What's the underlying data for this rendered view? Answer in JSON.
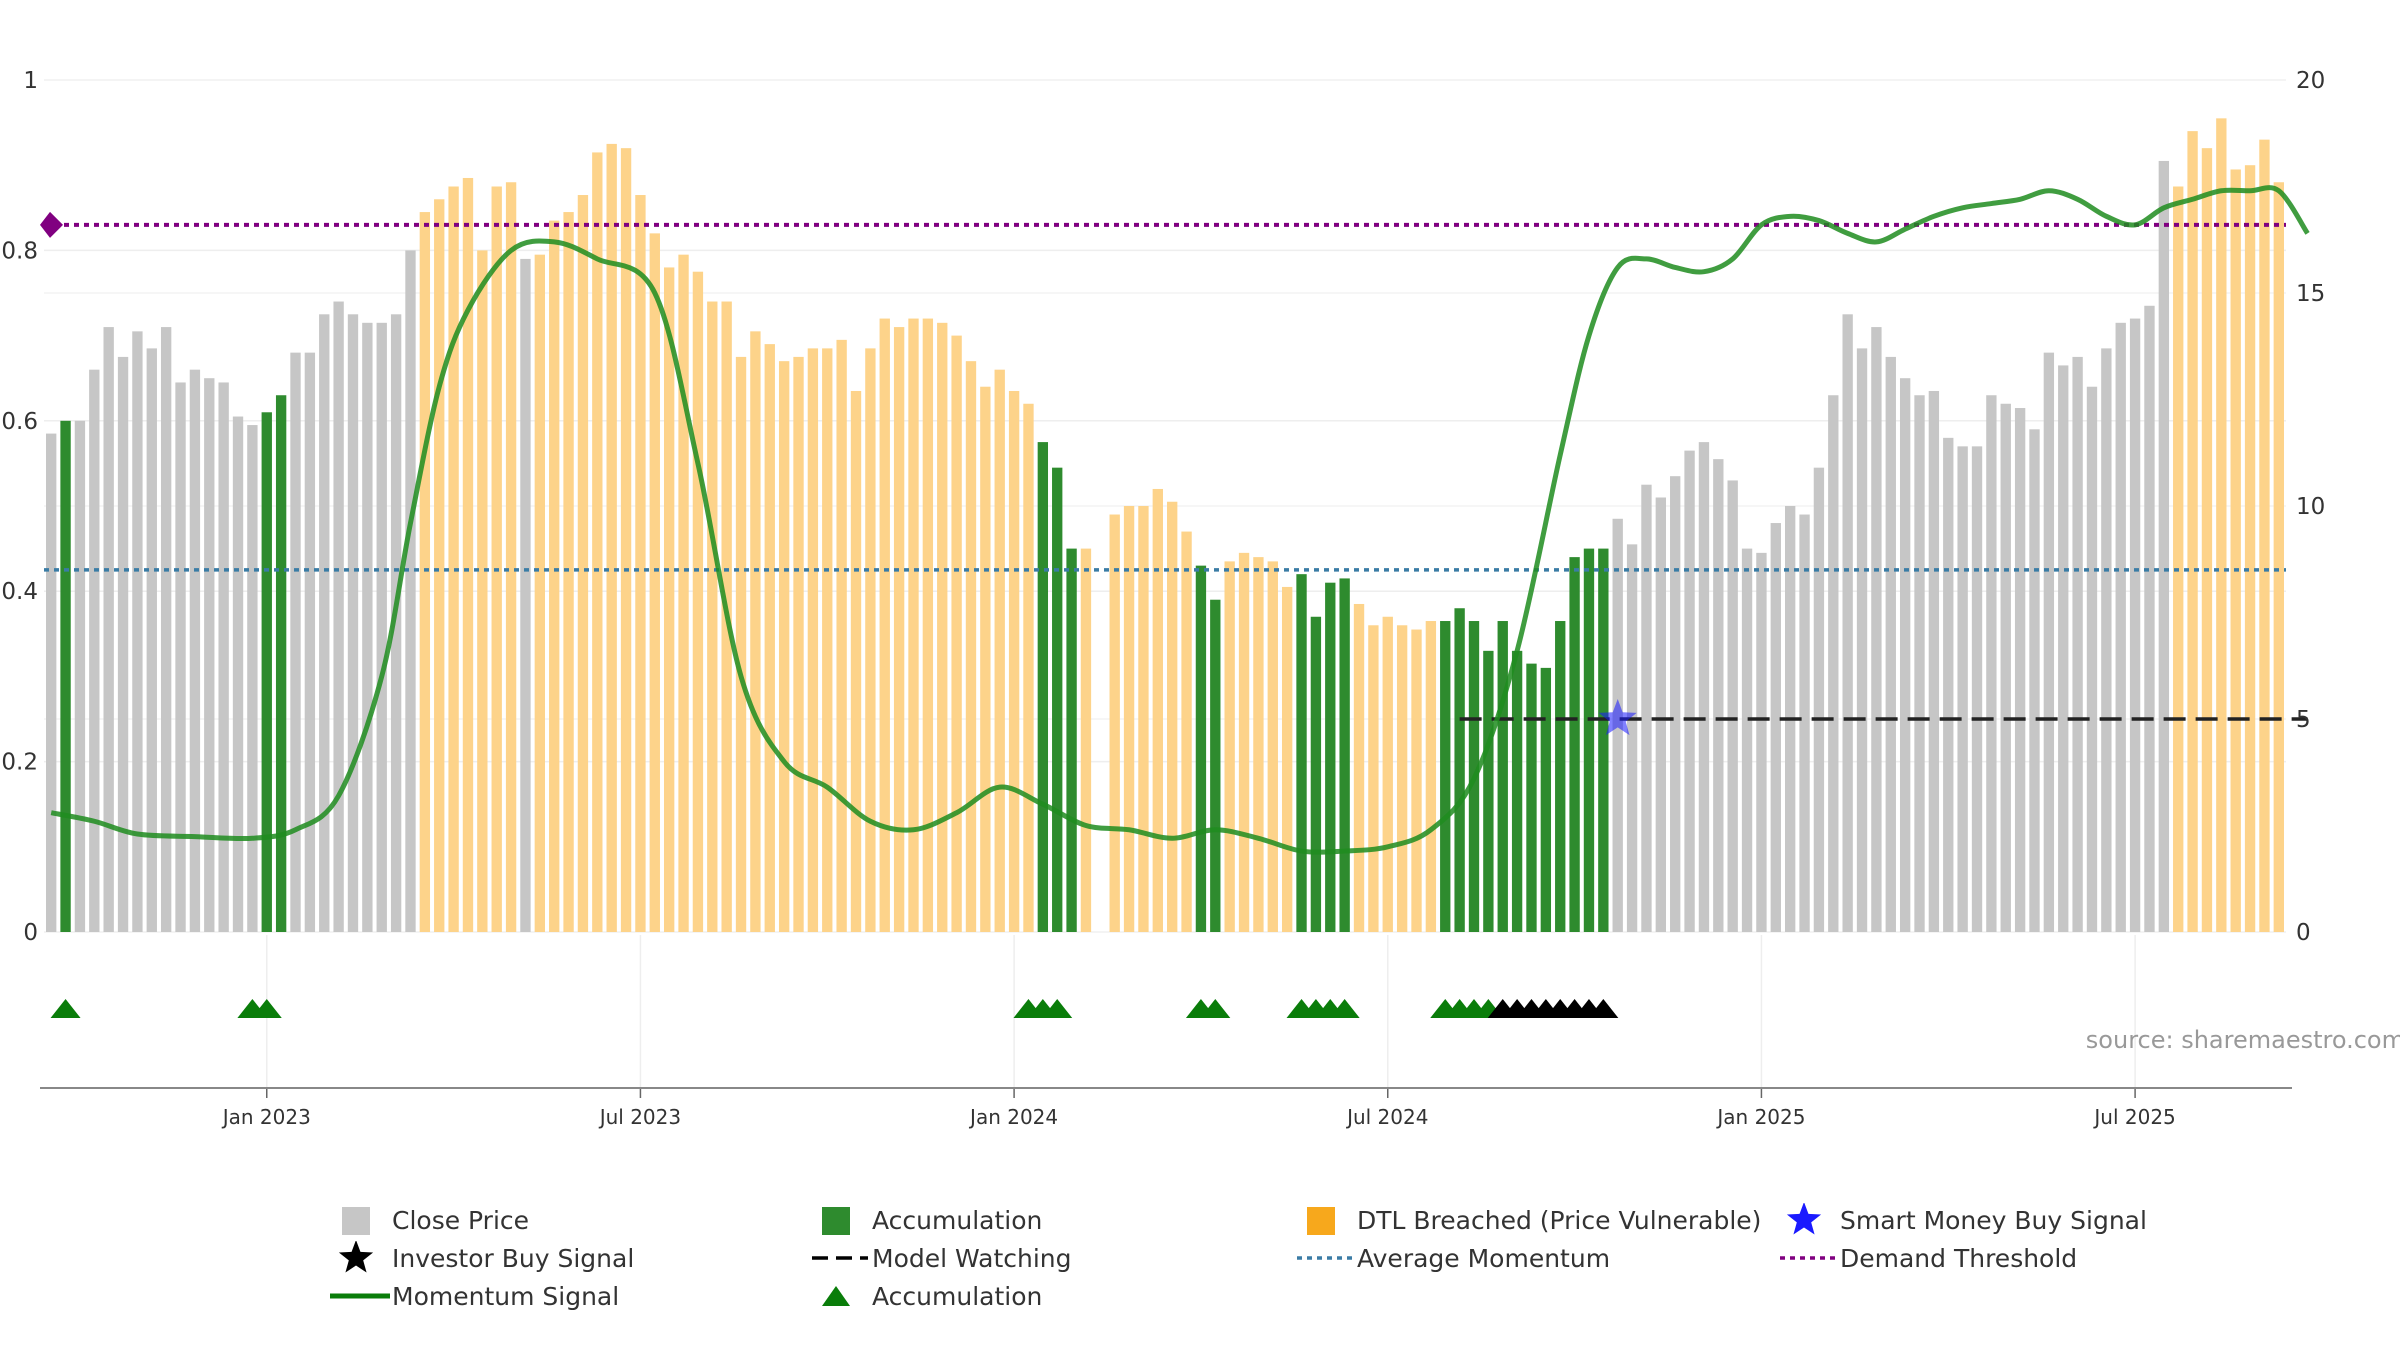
{
  "source_label": "source: sharemaestro.com",
  "colors": {
    "close_price": "#c6c6c6",
    "accumulation": "#2e8b2e",
    "dtl_breached": "#fdd38a",
    "momentum": "#1e8c1e",
    "average_momentum": "#3a7ca5",
    "demand_threshold": "#800080",
    "model_watching": "#222222",
    "smart_money": "#1a1aff",
    "investor_buy": "#000000",
    "marker_accumulation": "#0a7d0a"
  },
  "legend": [
    {
      "symbol": "square-gray",
      "label": "Close Price"
    },
    {
      "symbol": "square-green",
      "label": "Accumulation"
    },
    {
      "symbol": "square-orange",
      "label": "DTL Breached (Price Vulnerable)"
    },
    {
      "symbol": "star-blue",
      "label": "Smart Money Buy Signal"
    },
    {
      "symbol": "star-black",
      "label": "Investor Buy Signal"
    },
    {
      "symbol": "dash-black",
      "label": "Model Watching"
    },
    {
      "symbol": "dot-blue",
      "label": "Average Momentum"
    },
    {
      "symbol": "dot-purple",
      "label": "Demand Threshold"
    },
    {
      "symbol": "line-green",
      "label": "Momentum Signal"
    },
    {
      "symbol": "triangle-green",
      "label": "Accumulation"
    }
  ],
  "chart_data": {
    "type": "bar",
    "x_tick_labels": [
      "Jan 2023",
      "Jul 2023",
      "Jan 2024",
      "Jul 2024",
      "Jan 2025",
      "Jul 2025"
    ],
    "y_left": {
      "min": 0,
      "max": 1,
      "ticks": [
        "0",
        "0.2",
        "0.4",
        "0.6",
        "0.8",
        "1"
      ]
    },
    "y_right": {
      "min": 0,
      "max": 20,
      "ticks": [
        "0",
        "5",
        "10",
        "15",
        "20"
      ]
    },
    "grid": true,
    "legend_position": "bottom",
    "close_price_series": {
      "name": "Close Price",
      "axis": "right",
      "values": [
        11.7,
        12,
        12,
        13.2,
        14.2,
        13.5,
        14.1,
        13.7,
        14.2,
        12.9,
        13.2,
        13,
        12.9,
        12.1,
        11.9,
        12.2,
        12.6,
        13.6,
        13.6,
        14.5,
        14.8,
        14.5,
        14.3,
        14.3,
        14.5,
        16,
        16.9,
        17.2,
        17.5,
        17.7,
        16,
        17.5,
        17.6,
        15.8,
        15.9,
        16.7,
        16.9,
        17.3,
        18.3,
        18.5,
        18.4,
        17.3,
        16.4,
        15.6,
        15.9,
        15.5,
        14.8,
        14.8,
        13.5,
        14.1,
        13.8,
        13.4,
        13.5,
        13.7,
        13.7,
        13.9,
        12.7,
        13.7,
        14.4,
        14.2,
        14.4,
        14.4,
        14.3,
        14,
        13.4,
        12.8,
        13.2,
        12.7,
        12.4,
        11.5,
        10.9,
        9,
        9,
        0,
        9.8,
        10,
        10,
        10.4,
        10.1,
        9.4,
        8.6,
        7.8,
        8.7,
        8.9,
        8.8,
        8.7,
        8.1,
        8.4,
        7.4,
        8.2,
        8.3,
        7.7,
        7.2,
        7.4,
        7.2,
        7.1,
        7.3,
        7.3,
        7.6,
        7.3,
        6.6,
        7.3,
        6.6,
        6.3,
        6.2,
        7.3,
        8.8,
        9,
        9,
        9.7,
        9.1,
        10.5,
        10.2,
        10.7,
        11.3,
        11.5,
        11.1,
        10.6,
        9,
        8.9,
        9.6,
        10,
        9.8,
        10.9,
        12.6,
        14.5,
        13.7,
        14.2,
        13.5,
        13,
        12.6,
        12.7,
        11.6,
        11.4,
        11.4,
        12.6,
        12.4,
        12.3,
        11.8,
        13.6,
        13.3,
        13.5,
        12.8,
        13.7,
        14.3,
        14.4,
        14.7,
        18.1,
        17.5,
        18.8,
        18.4,
        19.1,
        17.9,
        18,
        18.6,
        17.6
      ],
      "accumulation_bars": [
        1,
        15,
        16,
        69,
        70,
        71,
        80,
        81,
        87,
        88,
        89,
        90,
        97,
        98,
        99,
        100,
        101,
        102,
        103,
        104,
        105,
        106,
        107,
        108
      ],
      "dtl_breached_bars": [
        26,
        27,
        28,
        29,
        30,
        31,
        32,
        34,
        35,
        36,
        37,
        38,
        39,
        40,
        41,
        42,
        43,
        44,
        45,
        46,
        47,
        48,
        49,
        50,
        51,
        52,
        53,
        54,
        55,
        56,
        57,
        58,
        59,
        60,
        61,
        62,
        63,
        64,
        65,
        66,
        67,
        68,
        69,
        70,
        71,
        72,
        73,
        74,
        75,
        76,
        77,
        78,
        79,
        80,
        81,
        82,
        83,
        84,
        85,
        86,
        87,
        88,
        89,
        90,
        91,
        92,
        93,
        94,
        95,
        96,
        97,
        98,
        99,
        100,
        101,
        102,
        103,
        104,
        105,
        106,
        107,
        108,
        148,
        149,
        150,
        151,
        152,
        153,
        154,
        155,
        156,
        157
      ]
    },
    "momentum_signal": {
      "name": "Momentum Signal",
      "axis": "left",
      "x_index": [
        0,
        3,
        6,
        10,
        14,
        17,
        20,
        23,
        25,
        27,
        29,
        32,
        35,
        38,
        42,
        45,
        48,
        51,
        54,
        57,
        60,
        63,
        66,
        69,
        72,
        75,
        78,
        81,
        84,
        87,
        90,
        93,
        96,
        99,
        102,
        105,
        107,
        109,
        111,
        113,
        115,
        117,
        119,
        121,
        123,
        125,
        127,
        129,
        131,
        133,
        135,
        137,
        139,
        141,
        143,
        145,
        147,
        149,
        151,
        153,
        155,
        157
      ],
      "values": [
        0.14,
        0.13,
        0.115,
        0.112,
        0.11,
        0.12,
        0.16,
        0.3,
        0.48,
        0.64,
        0.73,
        0.8,
        0.81,
        0.79,
        0.75,
        0.55,
        0.3,
        0.2,
        0.17,
        0.13,
        0.12,
        0.14,
        0.17,
        0.15,
        0.125,
        0.12,
        0.11,
        0.12,
        0.11,
        0.095,
        0.095,
        0.1,
        0.12,
        0.18,
        0.33,
        0.56,
        0.7,
        0.78,
        0.79,
        0.78,
        0.775,
        0.79,
        0.83,
        0.84,
        0.835,
        0.82,
        0.81,
        0.825,
        0.84,
        0.85,
        0.855,
        0.86,
        0.87,
        0.86,
        0.84,
        0.83,
        0.85,
        0.86,
        0.87,
        0.87,
        0.87,
        0.82
      ]
    },
    "average_momentum": {
      "name": "Average Momentum",
      "axis": "left",
      "value": 0.425
    },
    "demand_threshold": {
      "name": "Demand Threshold",
      "axis": "left",
      "value": 0.83
    },
    "model_watching": {
      "name": "Model Watching",
      "axis": "right",
      "value": 5,
      "from_index": 98,
      "to_index": 157
    },
    "smart_money_buy_signal": {
      "name": "Smart Money Buy Signal",
      "x_index": 109,
      "axis": "right",
      "value": 5
    },
    "accumulation_markers": [
      1,
      14,
      15,
      68,
      69,
      70,
      80,
      81,
      87,
      88,
      89,
      90,
      97,
      98,
      99,
      100
    ],
    "investor_buy_markers": [
      101,
      102,
      103,
      104,
      105,
      106,
      107,
      108
    ]
  }
}
